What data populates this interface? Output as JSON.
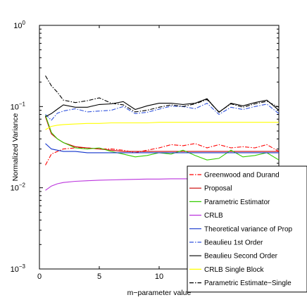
{
  "chart_data": {
    "type": "line",
    "title": "",
    "xlabel": "m−parameter value",
    "ylabel": "Normalized Variance",
    "xlim": [
      0,
      20
    ],
    "ylim": [
      0.001,
      1
    ],
    "y_scale": "log",
    "grid": false,
    "legend_position": "bottom-right",
    "x_ticks": [
      0,
      5,
      10
    ],
    "x_tick_labels": [
      "0",
      "5",
      "10"
    ],
    "y_ticks": [
      0.001,
      0.01,
      0.1,
      1
    ],
    "y_tick_labels": [
      [
        "10",
        "−3"
      ],
      [
        "10",
        "−2"
      ],
      [
        "10",
        "−1"
      ],
      [
        "10",
        "0"
      ]
    ],
    "x": [
      0.5,
      1,
      1.5,
      2,
      3,
      4,
      5,
      6,
      7,
      8,
      9,
      10,
      11,
      12,
      13,
      14,
      15,
      16,
      17,
      18,
      19,
      20
    ],
    "series": [
      {
        "name": "Greenwood and Durand",
        "color": "#ff0000",
        "dash": "6,2,1.5,2",
        "values": [
          0.019,
          0.026,
          0.028,
          0.03,
          0.031,
          0.031,
          0.03,
          0.03,
          0.029,
          0.027,
          0.029,
          0.031,
          0.034,
          0.033,
          0.035,
          0.031,
          0.034,
          0.031,
          0.032,
          0.031,
          0.034,
          0.028
        ]
      },
      {
        "name": "Proposal",
        "color": "#cc0000",
        "dash": "",
        "values": [
          0.075,
          0.046,
          0.04,
          0.036,
          0.032,
          0.031,
          0.03,
          0.029,
          0.028,
          0.028,
          0.028,
          0.028,
          0.028,
          0.028,
          0.028,
          0.028,
          0.028,
          0.028,
          0.028,
          0.028,
          0.028,
          0.028
        ]
      },
      {
        "name": "Parametric Estimator",
        "color": "#33cc00",
        "dash": "",
        "values": [
          0.078,
          0.048,
          0.04,
          0.036,
          0.031,
          0.03,
          0.031,
          0.028,
          0.026,
          0.024,
          0.025,
          0.027,
          0.026,
          0.029,
          0.025,
          0.022,
          0.023,
          0.029,
          0.024,
          0.025,
          0.027,
          0.022
        ]
      },
      {
        "name": "CRLB",
        "color": "#bb33dd",
        "dash": "",
        "values": [
          0.0093,
          0.0105,
          0.0112,
          0.0116,
          0.012,
          0.0122,
          0.0124,
          0.0125,
          0.0126,
          0.0127,
          0.0128,
          0.0128,
          0.0129,
          0.0129,
          0.0129,
          0.013,
          0.013,
          0.013,
          0.013,
          0.0131,
          0.0131,
          0.0131
        ]
      },
      {
        "name": "Theoretical variance of Prop",
        "color": "#1133cc",
        "dash": "",
        "values": [
          0.035,
          0.03,
          0.029,
          0.028,
          0.028,
          0.027,
          0.027,
          0.027,
          0.027,
          0.027,
          0.027,
          0.027,
          0.027,
          0.027,
          0.027,
          0.027,
          0.027,
          0.027,
          0.027,
          0.027,
          0.027,
          0.027
        ]
      },
      {
        "name": "Beaulieu 1st Order",
        "color": "#3355dd",
        "dash": "6,2,1.5,2",
        "values": [
          0.08,
          0.068,
          0.083,
          0.088,
          0.094,
          0.086,
          0.088,
          0.09,
          0.1,
          0.082,
          0.085,
          0.093,
          0.101,
          0.1,
          0.094,
          0.11,
          0.08,
          0.098,
          0.092,
          0.1,
          0.107,
          0.082
        ]
      },
      {
        "name": "Beaulieu Second Order",
        "color": "#000000",
        "dash": "",
        "values": [
          0.075,
          0.082,
          0.093,
          0.105,
          0.098,
          0.098,
          0.106,
          0.108,
          0.115,
          0.092,
          0.102,
          0.11,
          0.11,
          0.106,
          0.11,
          0.125,
          0.085,
          0.11,
          0.102,
          0.112,
          0.12,
          0.09
        ]
      },
      {
        "name": "CRLB Single Block",
        "color": "#ffff00",
        "dash": "",
        "values": [
          0.052,
          0.057,
          0.059,
          0.06,
          0.061,
          0.062,
          0.062,
          0.063,
          0.063,
          0.063,
          0.063,
          0.064,
          0.064,
          0.064,
          0.064,
          0.064,
          0.064,
          0.064,
          0.064,
          0.064,
          0.064,
          0.064
        ]
      },
      {
        "name": "Parametric Estimate−Single",
        "color": "#000000",
        "dash": "6,2,1.5,2",
        "values": [
          0.24,
          0.18,
          0.15,
          0.12,
          0.112,
          0.118,
          0.128,
          0.11,
          0.105,
          0.086,
          0.09,
          0.098,
          0.105,
          0.1,
          0.108,
          0.122,
          0.086,
          0.108,
          0.098,
          0.108,
          0.116,
          0.098
        ]
      }
    ]
  }
}
